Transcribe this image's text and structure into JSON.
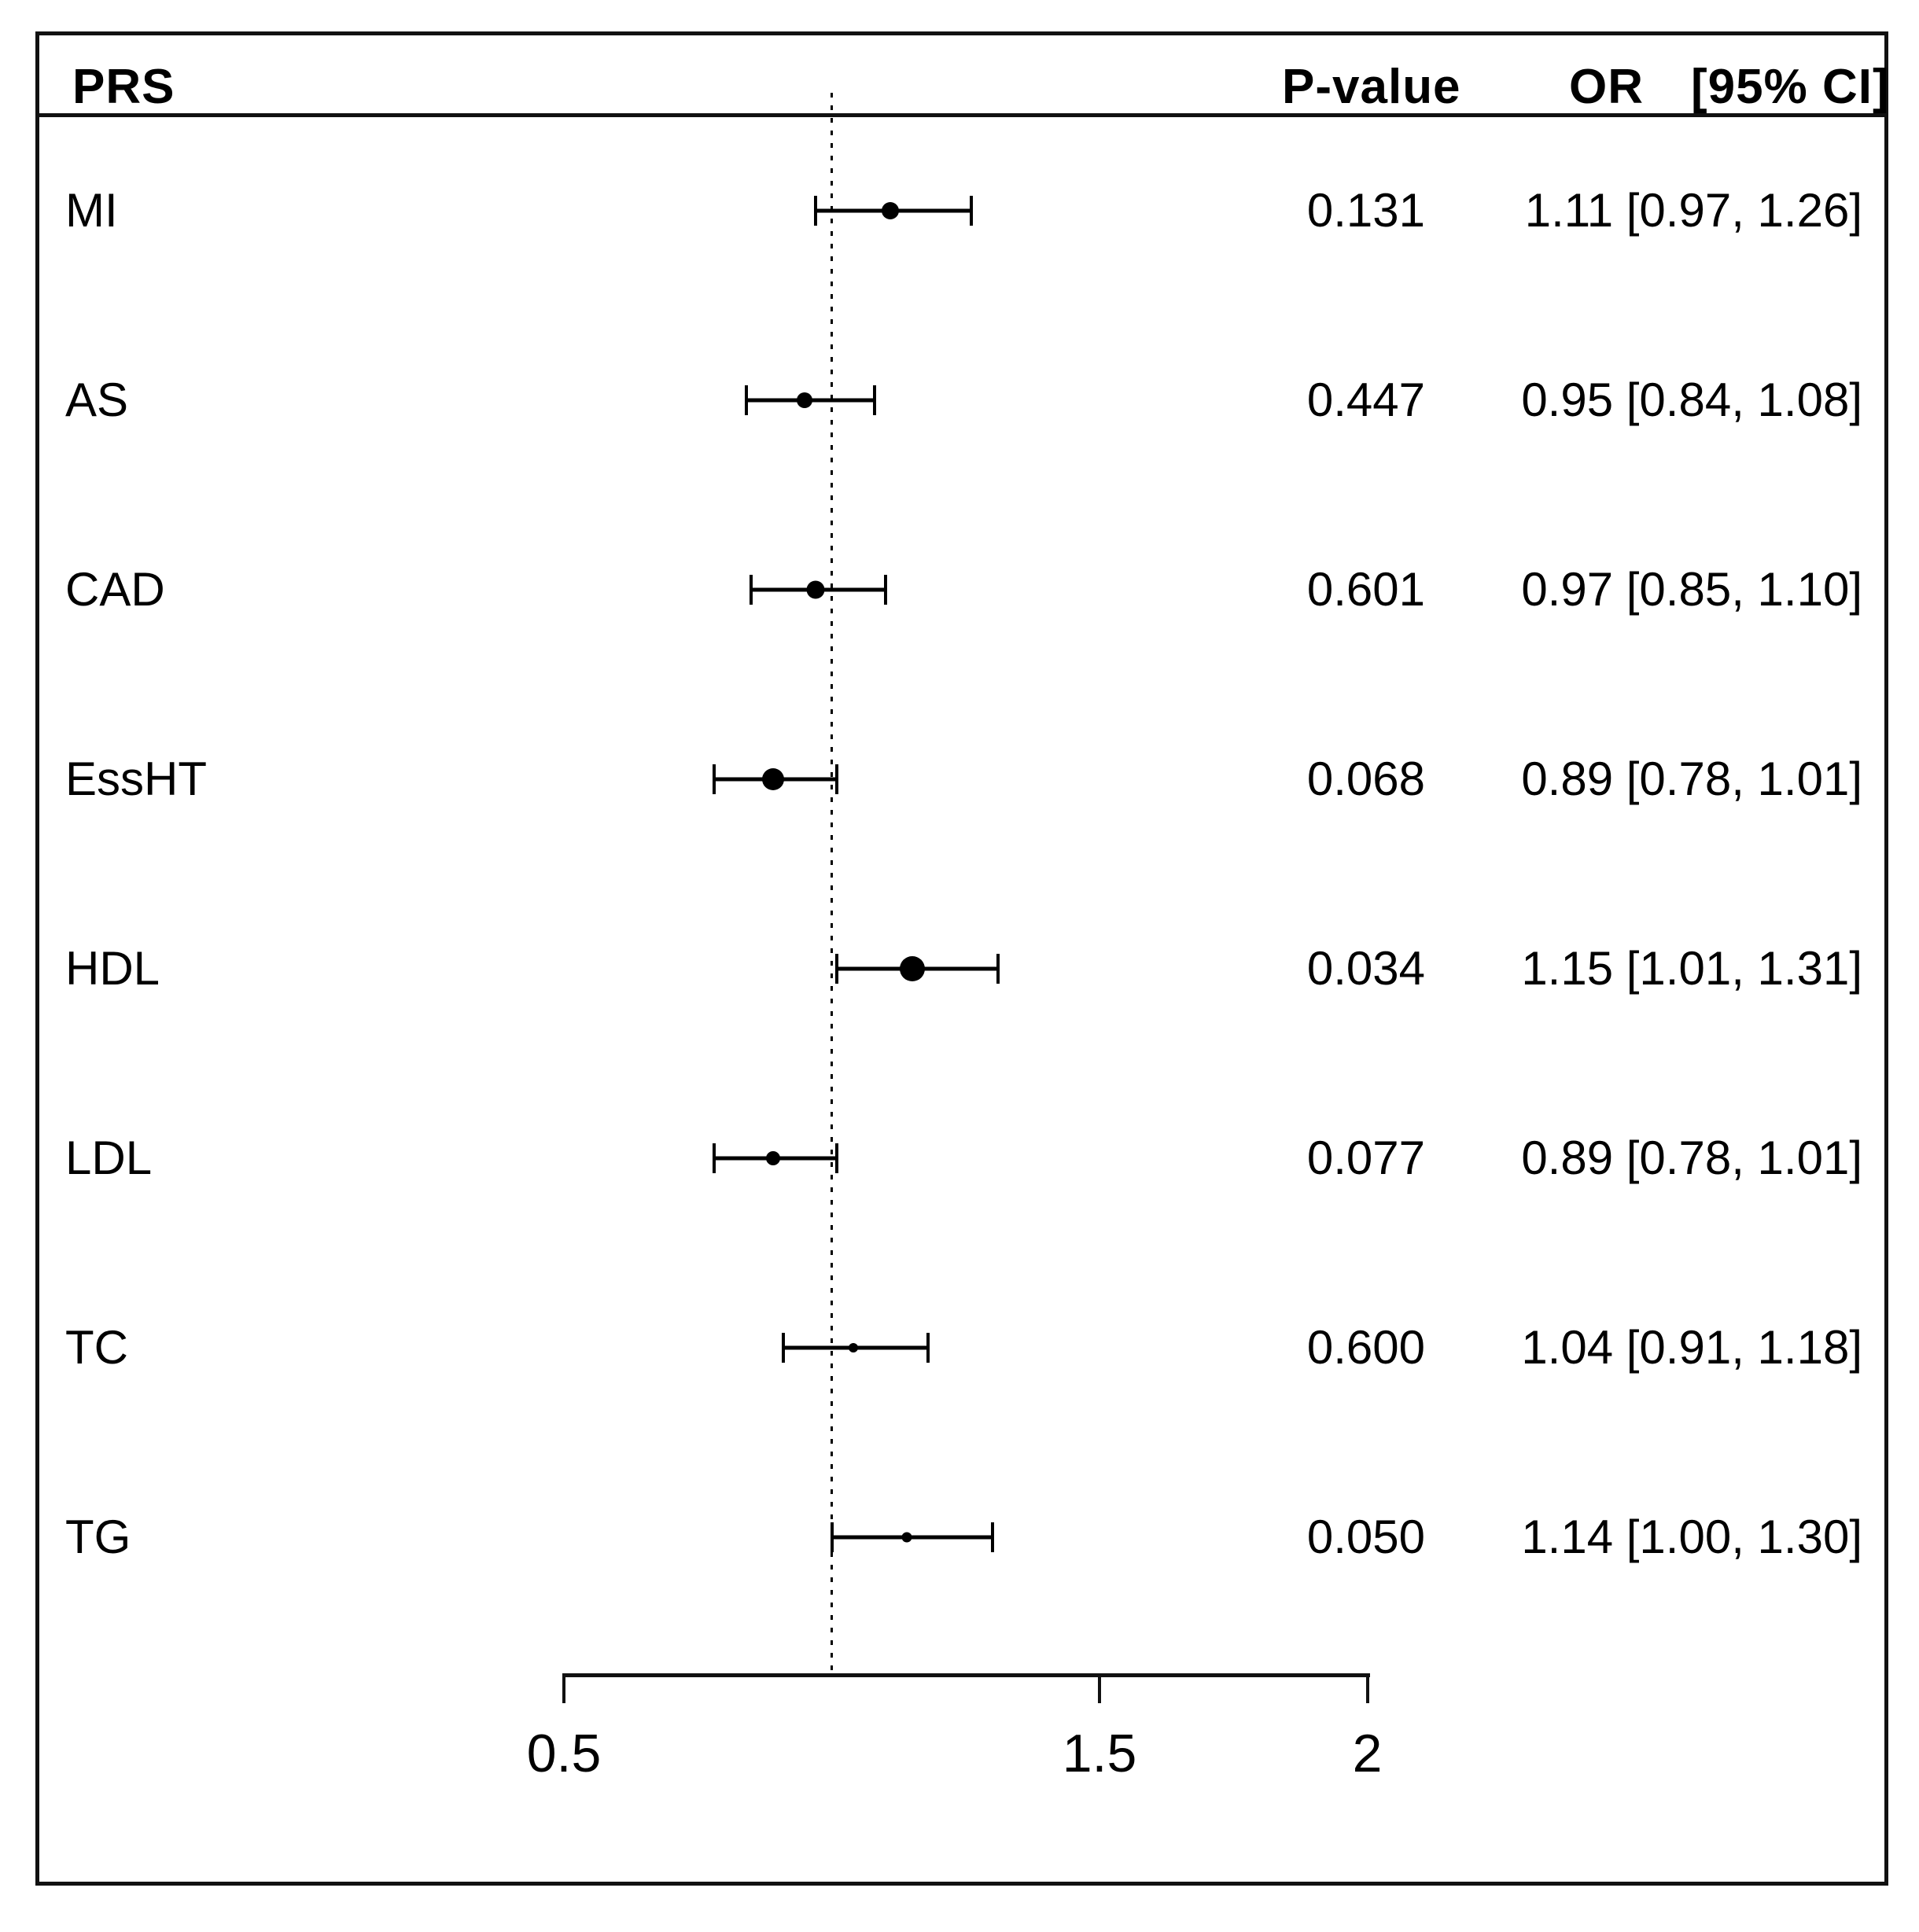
{
  "figure": {
    "header": {
      "left": "PRS",
      "p_value": "P-value",
      "or": "OR",
      "ci": "[95% CI]"
    }
  },
  "chart_data": {
    "type": "forest",
    "title": "",
    "xlabel": "",
    "columns": [
      "PRS",
      "P-value",
      "OR [95% CI]"
    ],
    "x_axis": {
      "range": [
        0.5,
        2
      ],
      "ticks": [
        0.5,
        1.5,
        2
      ],
      "tick_labels": [
        "0.5",
        "1.5",
        "2"
      ],
      "reference_line": 1.0,
      "reference_line_style": "dotted",
      "grid": false
    },
    "rows": [
      {
        "label": "MI",
        "p_value": "0.131",
        "or": 1.11,
        "ci_low": 0.97,
        "ci_high": 1.26,
        "or_ci_text": "1.11 [0.97, 1.26]",
        "marker_px": 22
      },
      {
        "label": "AS",
        "p_value": "0.447",
        "or": 0.95,
        "ci_low": 0.84,
        "ci_high": 1.08,
        "or_ci_text": "0.95 [0.84, 1.08]",
        "marker_px": 20
      },
      {
        "label": "CAD",
        "p_value": "0.601",
        "or": 0.97,
        "ci_low": 0.85,
        "ci_high": 1.1,
        "or_ci_text": "0.97 [0.85, 1.10]",
        "marker_px": 23
      },
      {
        "label": "EssHT",
        "p_value": "0.068",
        "or": 0.89,
        "ci_low": 0.78,
        "ci_high": 1.01,
        "or_ci_text": "0.89 [0.78, 1.01]",
        "marker_px": 28
      },
      {
        "label": "HDL",
        "p_value": "0.034",
        "or": 1.15,
        "ci_low": 1.01,
        "ci_high": 1.31,
        "or_ci_text": "1.15 [1.01, 1.31]",
        "marker_px": 32
      },
      {
        "label": "LDL",
        "p_value": "0.077",
        "or": 0.89,
        "ci_low": 0.78,
        "ci_high": 1.01,
        "or_ci_text": "0.89 [0.78, 1.01]",
        "marker_px": 18
      },
      {
        "label": "TC",
        "p_value": "0.600",
        "or": 1.04,
        "ci_low": 0.91,
        "ci_high": 1.18,
        "or_ci_text": "1.04 [0.91, 1.18]",
        "marker_px": 12
      },
      {
        "label": "TG",
        "p_value": "0.050",
        "or": 1.14,
        "ci_low": 1.0,
        "ci_high": 1.3,
        "or_ci_text": "1.14 [1.00, 1.30]",
        "marker_px": 13
      }
    ]
  },
  "colors": {
    "ink": "#000000",
    "frame": "#111111",
    "background": "#ffffff"
  }
}
